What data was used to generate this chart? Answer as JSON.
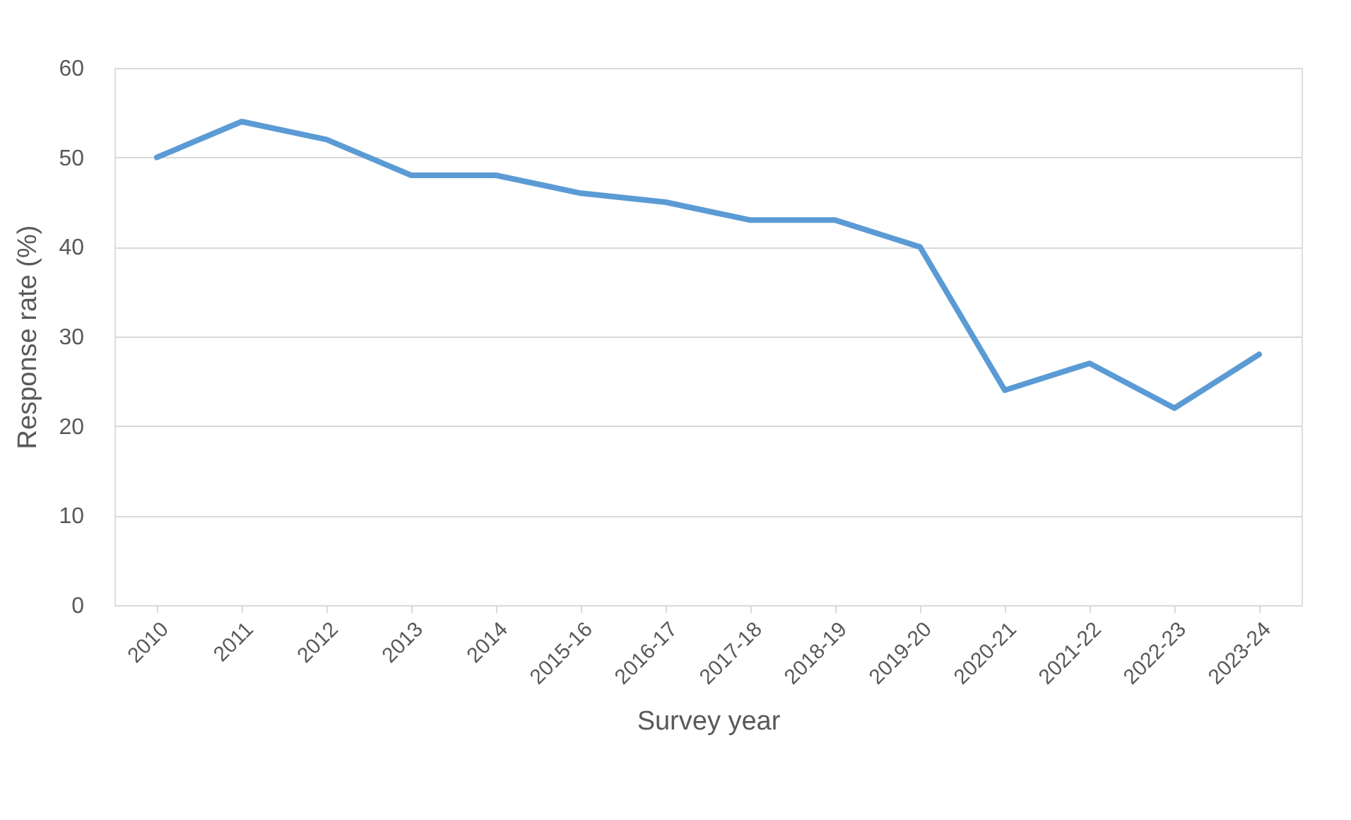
{
  "chart_data": {
    "type": "line",
    "xlabel": "Survey year",
    "ylabel": "Response rate (%)",
    "categories": [
      "2010",
      "2011",
      "2012",
      "2013",
      "2014",
      "2015-16",
      "2016-17",
      "2017-18",
      "2018-19",
      "2019-20",
      "2020-21",
      "2021-22",
      "2022-23",
      "2023-24"
    ],
    "series": [
      {
        "color": "#5b9bd5",
        "values": [
          50,
          54,
          52,
          48,
          48,
          46,
          45,
          43,
          43,
          40,
          24,
          27,
          22,
          28
        ]
      }
    ],
    "ylim": [
      0,
      60
    ],
    "yticks": [
      0,
      10,
      20,
      30,
      40,
      50,
      60
    ],
    "grid": "y",
    "legend": false,
    "marker": "none",
    "line_style": "solid"
  }
}
